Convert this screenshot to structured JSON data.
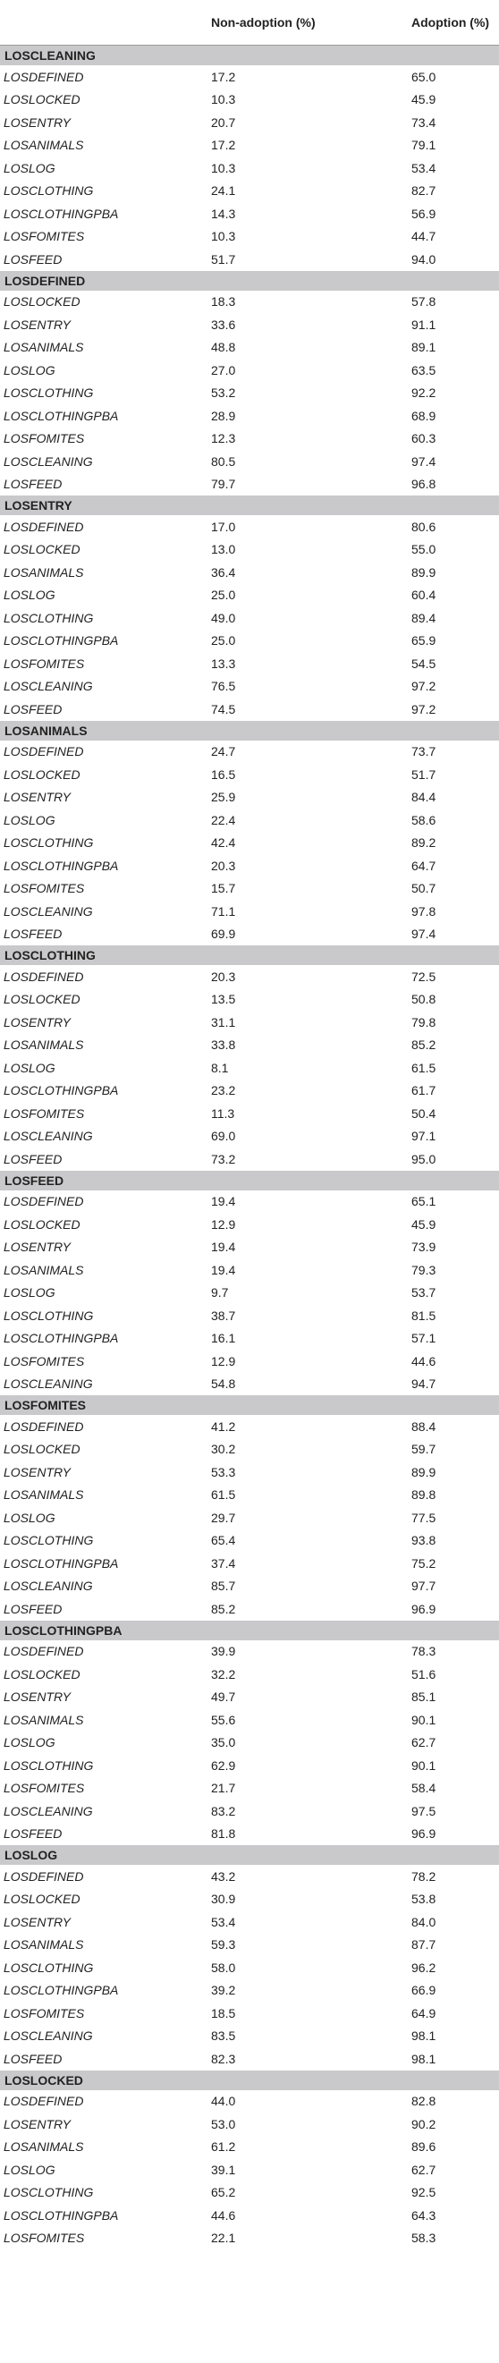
{
  "header": {
    "col_variable": "",
    "col_nonadoption": "Non-adoption (%)",
    "col_adoption": "Adoption (%)"
  },
  "sections": [
    {
      "title": "LOSCLEANING",
      "rows": [
        [
          "LOSDEFINED",
          "17.2",
          "65.0"
        ],
        [
          "LOSLOCKED",
          "10.3",
          "45.9"
        ],
        [
          "LOSENTRY",
          "20.7",
          "73.4"
        ],
        [
          "LOSANIMALS",
          "17.2",
          "79.1"
        ],
        [
          "LOSLOG",
          "10.3",
          "53.4"
        ],
        [
          "LOSCLOTHING",
          "24.1",
          "82.7"
        ],
        [
          "LOSCLOTHINGPBA",
          "14.3",
          "56.9"
        ],
        [
          "LOSFOMITES",
          "10.3",
          "44.7"
        ],
        [
          "LOSFEED",
          "51.7",
          "94.0"
        ]
      ]
    },
    {
      "title": "LOSDEFINED",
      "rows": [
        [
          "LOSLOCKED",
          "18.3",
          "57.8"
        ],
        [
          "LOSENTRY",
          "33.6",
          "91.1"
        ],
        [
          "LOSANIMALS",
          "48.8",
          "89.1"
        ],
        [
          "LOSLOG",
          "27.0",
          "63.5"
        ],
        [
          "LOSCLOTHING",
          "53.2",
          "92.2"
        ],
        [
          "LOSCLOTHINGPBA",
          "28.9",
          "68.9"
        ],
        [
          "LOSFOMITES",
          "12.3",
          "60.3"
        ],
        [
          "LOSCLEANING",
          "80.5",
          "97.4"
        ],
        [
          "LOSFEED",
          "79.7",
          "96.8"
        ]
      ]
    },
    {
      "title": "LOSENTRY",
      "rows": [
        [
          "LOSDEFINED",
          "17.0",
          "80.6"
        ],
        [
          "LOSLOCKED",
          "13.0",
          "55.0"
        ],
        [
          "LOSANIMALS",
          "36.4",
          "89.9"
        ],
        [
          "LOSLOG",
          "25.0",
          "60.4"
        ],
        [
          "LOSCLOTHING",
          "49.0",
          "89.4"
        ],
        [
          "LOSCLOTHINGPBA",
          "25.0",
          "65.9"
        ],
        [
          "LOSFOMITES",
          "13.3",
          "54.5"
        ],
        [
          "LOSCLEANING",
          "76.5",
          "97.2"
        ],
        [
          "LOSFEED",
          "74.5",
          "97.2"
        ]
      ]
    },
    {
      "title": "LOSANIMALS",
      "rows": [
        [
          "LOSDEFINED",
          "24.7",
          "73.7"
        ],
        [
          "LOSLOCKED",
          "16.5",
          "51.7"
        ],
        [
          "LOSENTRY",
          "25.9",
          "84.4"
        ],
        [
          "LOSLOG",
          "22.4",
          "58.6"
        ],
        [
          "LOSCLOTHING",
          "42.4",
          "89.2"
        ],
        [
          "LOSCLOTHINGPBA",
          "20.3",
          "64.7"
        ],
        [
          "LOSFOMITES",
          "15.7",
          "50.7"
        ],
        [
          "LOSCLEANING",
          "71.1",
          "97.8"
        ],
        [
          "LOSFEED",
          "69.9",
          "97.4"
        ]
      ]
    },
    {
      "title": "LOSCLOTHING",
      "rows": [
        [
          "LOSDEFINED",
          "20.3",
          "72.5"
        ],
        [
          "LOSLOCKED",
          "13.5",
          "50.8"
        ],
        [
          "LOSENTRY",
          "31.1",
          "79.8"
        ],
        [
          "LOSANIMALS",
          "33.8",
          "85.2"
        ],
        [
          "LOSLOG",
          "8.1",
          "61.5"
        ],
        [
          "LOSCLOTHINGPBA",
          "23.2",
          "61.7"
        ],
        [
          "LOSFOMITES",
          "11.3",
          "50.4"
        ],
        [
          "LOSCLEANING",
          "69.0",
          "97.1"
        ],
        [
          "LOSFEED",
          "73.2",
          "95.0"
        ]
      ]
    },
    {
      "title": "LOSFEED",
      "rows": [
        [
          "LOSDEFINED",
          "19.4",
          "65.1"
        ],
        [
          "LOSLOCKED",
          "12.9",
          "45.9"
        ],
        [
          "LOSENTRY",
          "19.4",
          "73.9"
        ],
        [
          "LOSANIMALS",
          "19.4",
          "79.3"
        ],
        [
          "LOSLOG",
          "9.7",
          "53.7"
        ],
        [
          "LOSCLOTHING",
          "38.7",
          "81.5"
        ],
        [
          "LOSCLOTHINGPBA",
          "16.1",
          "57.1"
        ],
        [
          "LOSFOMITES",
          "12.9",
          "44.6"
        ],
        [
          "LOSCLEANING",
          "54.8",
          "94.7"
        ]
      ]
    },
    {
      "title": "LOSFOMITES",
      "rows": [
        [
          "LOSDEFINED",
          "41.2",
          "88.4"
        ],
        [
          "LOSLOCKED",
          "30.2",
          "59.7"
        ],
        [
          "LOSENTRY",
          "53.3",
          "89.9"
        ],
        [
          "LOSANIMALS",
          "61.5",
          "89.8"
        ],
        [
          "LOSLOG",
          "29.7",
          "77.5"
        ],
        [
          "LOSCLOTHING",
          "65.4",
          "93.8"
        ],
        [
          "LOSCLOTHINGPBA",
          "37.4",
          "75.2"
        ],
        [
          "LOSCLEANING",
          "85.7",
          "97.7"
        ],
        [
          "LOSFEED",
          "85.2",
          "96.9"
        ]
      ]
    },
    {
      "title": "LOSCLOTHINGPBA",
      "rows": [
        [
          "LOSDEFINED",
          "39.9",
          "78.3"
        ],
        [
          "LOSLOCKED",
          "32.2",
          "51.6"
        ],
        [
          "LOSENTRY",
          "49.7",
          "85.1"
        ],
        [
          "LOSANIMALS",
          "55.6",
          "90.1"
        ],
        [
          "LOSLOG",
          "35.0",
          "62.7"
        ],
        [
          "LOSCLOTHING",
          "62.9",
          "90.1"
        ],
        [
          "LOSFOMITES",
          "21.7",
          "58.4"
        ],
        [
          "LOSCLEANING",
          "83.2",
          "97.5"
        ],
        [
          "LOSFEED",
          "81.8",
          "96.9"
        ]
      ]
    },
    {
      "title": "LOSLOG",
      "rows": [
        [
          "LOSDEFINED",
          "43.2",
          "78.2"
        ],
        [
          "LOSLOCKED",
          "30.9",
          "53.8"
        ],
        [
          "LOSENTRY",
          "53.4",
          "84.0"
        ],
        [
          "LOSANIMALS",
          "59.3",
          "87.7"
        ],
        [
          "LOSCLOTHING",
          "58.0",
          "96.2"
        ],
        [
          "LOSCLOTHINGPBA",
          "39.2",
          "66.9"
        ],
        [
          "LOSFOMITES",
          "18.5",
          "64.9"
        ],
        [
          "LOSCLEANING",
          "83.5",
          "98.1"
        ],
        [
          "LOSFEED",
          "82.3",
          "98.1"
        ]
      ]
    },
    {
      "title": "LOSLOCKED",
      "rows": [
        [
          "LOSDEFINED",
          "44.0",
          "82.8"
        ],
        [
          "LOSENTRY",
          "53.0",
          "90.2"
        ],
        [
          "LOSANIMALS",
          "61.2",
          "89.6"
        ],
        [
          "LOSLOG",
          "39.1",
          "62.7"
        ],
        [
          "LOSCLOTHING",
          "65.2",
          "92.5"
        ],
        [
          "LOSCLOTHINGPBA",
          "44.6",
          "64.3"
        ],
        [
          "LOSFOMITES",
          "22.1",
          "58.3"
        ]
      ]
    }
  ]
}
